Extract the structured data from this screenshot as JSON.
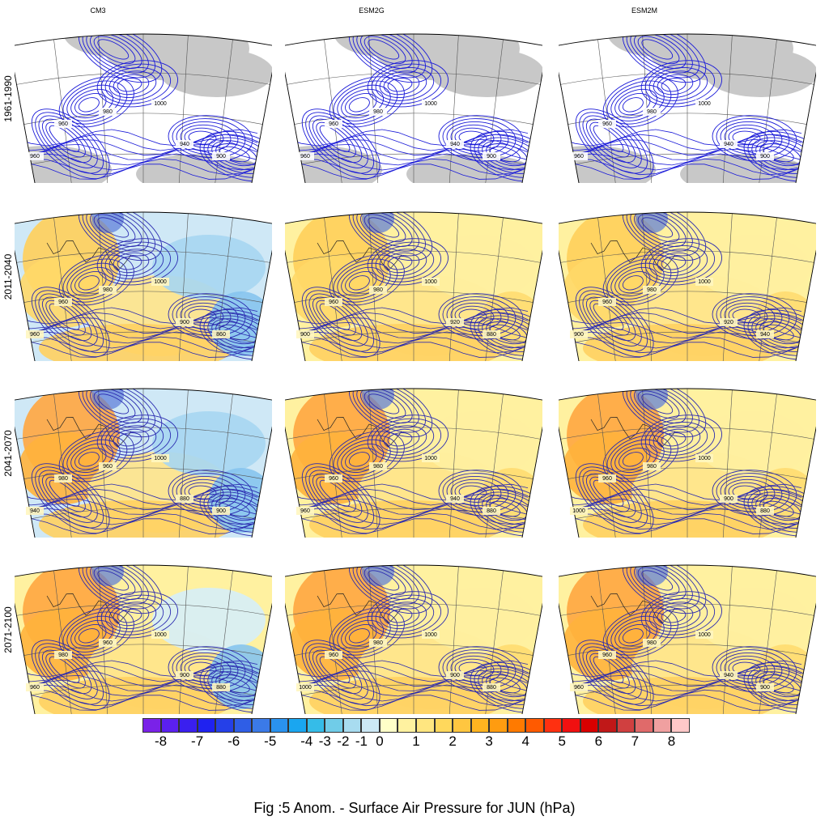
{
  "columns": [
    "CM3",
    "ESM2G",
    "ESM2M"
  ],
  "rows": [
    "1961-1990",
    "2011-2040",
    "2041-2070",
    "2071-2100"
  ],
  "contour_labels": [
    [
      [
        "1000",
        "980",
        "960",
        "940",
        "900",
        "960"
      ],
      [
        "1000",
        "980",
        "960",
        "940",
        "900",
        "960"
      ],
      [
        "1000",
        "980",
        "960",
        "940",
        "900",
        "960"
      ]
    ],
    [
      [
        "1000",
        "980",
        "960",
        "900",
        "860",
        "960"
      ],
      [
        "1000",
        "980",
        "960",
        "920",
        "880",
        "900"
      ],
      [
        "1000",
        "980",
        "960",
        "920",
        "940",
        "900"
      ]
    ],
    [
      [
        "1000",
        "960",
        "980",
        "880",
        "900",
        "940"
      ],
      [
        "1000",
        "980",
        "960",
        "940",
        "880",
        "960"
      ],
      [
        "1000",
        "980",
        "960",
        "900",
        "880",
        "1000"
      ]
    ],
    [
      [
        "1000",
        "960",
        "980",
        "900",
        "880",
        "960"
      ],
      [
        "1000",
        "980",
        "960",
        "900",
        "880",
        "1000"
      ],
      [
        "1000",
        "980",
        "960",
        "940",
        "900",
        "960"
      ]
    ]
  ],
  "colorbar": {
    "ticks": [
      "-8",
      "-7",
      "-6",
      "-5",
      "-4",
      "-3",
      "-2",
      "-1",
      "0",
      "1",
      "2",
      "3",
      "4",
      "5",
      "6",
      "7",
      "8"
    ],
    "colors": [
      "#7a22e8",
      "#5b20f0",
      "#3a1fef",
      "#1f22f0",
      "#2540e8",
      "#2f5ee6",
      "#3b7ae8",
      "#2a92ee",
      "#1aa6f0",
      "#35bce8",
      "#70cce8",
      "#a8dcf0",
      "#cce8f5",
      "#ffffc8",
      "#fff2a0",
      "#ffe680",
      "#ffd85c",
      "#ffc640",
      "#ffb420",
      "#ff9c10",
      "#ff7a00",
      "#ff5a00",
      "#ff3010",
      "#f01010",
      "#d80000",
      "#c01818",
      "#d04040",
      "#e06a6a",
      "#f0a0a0",
      "#ffc8c8"
    ]
  },
  "caption": "Fig :5  Anom.  - Surface Air Pressure for JUN (hPa)"
}
